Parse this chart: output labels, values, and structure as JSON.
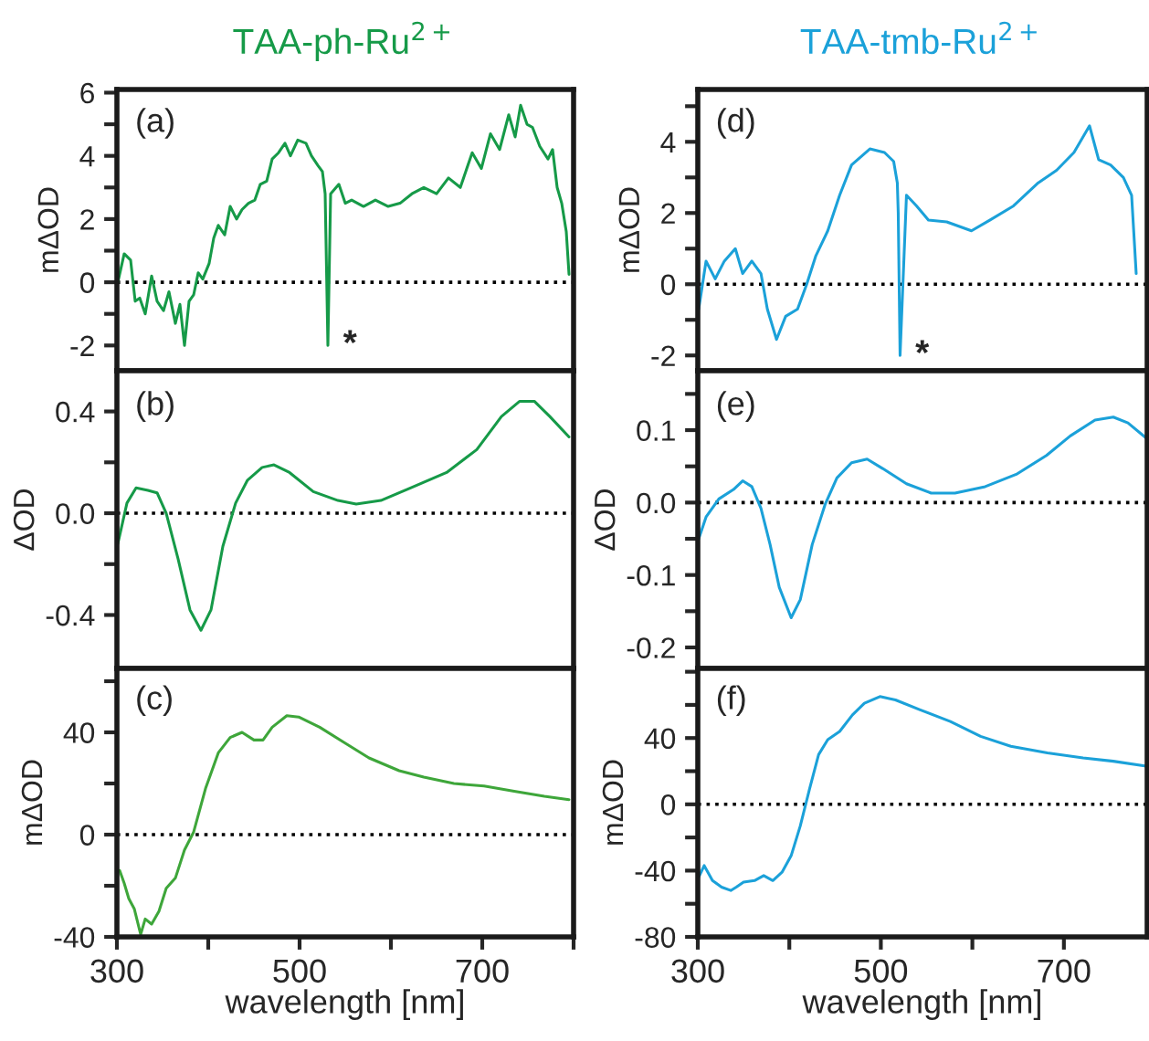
{
  "chart_data": [
    {
      "type": "line",
      "title": "TAA-ph-Ru$^{2+}$",
      "ylabel": "mΔOD",
      "tick_labels": "y",
      "color": "#169a48",
      "x": [
        301,
        308,
        315,
        320,
        325,
        331,
        338,
        344,
        351,
        357,
        364,
        369,
        374,
        379,
        384,
        389,
        394,
        401,
        406,
        411,
        418,
        424,
        431,
        437,
        444,
        451,
        457,
        464,
        470,
        477,
        484,
        490,
        498,
        507,
        513,
        520,
        525,
        528,
        531,
        534,
        543,
        550,
        557,
        570,
        583,
        597,
        610,
        623,
        636,
        650,
        663,
        676,
        689,
        699,
        709,
        719,
        729,
        736,
        742,
        749,
        755,
        763,
        772,
        777,
        782,
        787,
        792,
        795
      ],
      "values": [
        0.0,
        0.9,
        0.7,
        -0.6,
        -0.5,
        -1.0,
        0.2,
        -0.6,
        -0.9,
        -0.3,
        -1.3,
        -0.7,
        -2.0,
        -0.6,
        -0.4,
        0.3,
        0.1,
        0.6,
        1.4,
        1.8,
        1.5,
        2.4,
        2.0,
        2.3,
        2.5,
        2.6,
        3.1,
        3.2,
        3.9,
        4.1,
        4.4,
        4.0,
        4.5,
        4.4,
        4.0,
        3.7,
        3.5,
        2.8,
        -2.0,
        2.8,
        3.1,
        2.5,
        2.6,
        2.4,
        2.6,
        2.4,
        2.5,
        2.8,
        3.0,
        2.8,
        3.3,
        3.0,
        4.1,
        3.6,
        4.7,
        4.2,
        5.3,
        4.6,
        5.6,
        5.0,
        4.9,
        4.3,
        3.9,
        4.2,
        3.0,
        2.5,
        1.6,
        0.25
      ],
      "xlim": [
        300,
        800
      ],
      "ylim": [
        -2.8,
        6.1
      ],
      "yticks": [
        -2,
        {
          "value": -1,
          "label": null
        },
        0,
        {
          "value": 1,
          "label": null
        },
        2,
        {
          "value": 3,
          "label": null
        },
        4,
        {
          "value": 5,
          "label": null
        },
        6
      ],
      "ref_lines": [
        {
          "axis": "y",
          "value": 0,
          "color": "#000000",
          "line_style": "dotted"
        }
      ],
      "annotations": [
        "(a)",
        {
          "text": "*",
          "x": 531,
          "y": -2.0
        }
      ]
    },
    {
      "type": "line",
      "ylabel": "ΔOD",
      "tick_labels": "y",
      "color": "#169a48",
      "x": [
        301,
        311,
        321,
        334,
        344,
        354,
        367,
        380,
        392,
        403,
        416,
        430,
        443,
        459,
        472,
        489,
        515,
        542,
        562,
        589,
        622,
        661,
        694,
        721,
        741,
        757,
        774,
        795
      ],
      "values": [
        -0.12,
        0.04,
        0.1,
        0.09,
        0.08,
        0.0,
        -0.18,
        -0.38,
        -0.46,
        -0.38,
        -0.13,
        0.04,
        0.13,
        0.18,
        0.19,
        0.16,
        0.085,
        0.05,
        0.036,
        0.05,
        0.1,
        0.16,
        0.25,
        0.38,
        0.44,
        0.44,
        0.38,
        0.3
      ],
      "xlim": [
        300,
        800
      ],
      "ylim": [
        -0.61,
        0.56
      ],
      "yticks": [
        -0.4,
        {
          "value": -0.2,
          "label": null
        },
        {
          "value": 0,
          "label": "0.0"
        },
        {
          "value": 0.2,
          "label": null
        },
        0.4
      ],
      "ref_lines": [
        {
          "axis": "y",
          "value": 0,
          "color": "#000000",
          "line_style": "dotted"
        }
      ],
      "annotations": [
        "(b)"
      ]
    },
    {
      "type": "line",
      "xlabel": "wavelength [nm]",
      "ylabel": "mΔOD",
      "color": "#3ea63a",
      "x": [
        303,
        308,
        313,
        319,
        326,
        331,
        338,
        346,
        354,
        364,
        374,
        384,
        397,
        411,
        424,
        437,
        450,
        460,
        470,
        486,
        499,
        522,
        549,
        576,
        609,
        636,
        669,
        702,
        735,
        768,
        795
      ],
      "values": [
        -14,
        -19,
        -25,
        -29,
        -39,
        -33,
        -35,
        -30,
        -21,
        -17,
        -6,
        1,
        18,
        32,
        38,
        40,
        37,
        37,
        42,
        46.5,
        46,
        42,
        36,
        30,
        25,
        22.5,
        20,
        19,
        17,
        15,
        13.7
      ],
      "xlim": [
        300,
        800
      ],
      "ylim": [
        -40,
        65
      ],
      "xticks": [
        300,
        {
          "value": 400,
          "label": null
        },
        500,
        {
          "value": 600,
          "label": null
        },
        700,
        {
          "value": 800,
          "label": null
        }
      ],
      "yticks": [
        -40,
        {
          "value": -20,
          "label": null
        },
        0,
        {
          "value": 20,
          "label": null
        },
        40,
        {
          "value": 60,
          "label": null
        }
      ],
      "ref_lines": [
        {
          "axis": "y",
          "value": 0,
          "color": "#000000",
          "line_style": "dotted"
        }
      ],
      "annotations": [
        "(c)"
      ]
    },
    {
      "type": "line",
      "title": "TAA-tmb-Ru$^{2+}$",
      "ylabel": "mΔOD",
      "tick_labels": "y",
      "color": "#1ba1d9",
      "x": [
        301,
        309,
        319,
        329,
        341,
        349,
        359,
        369,
        376,
        386,
        396,
        409,
        419,
        429,
        442,
        455,
        468,
        488,
        504,
        514,
        518,
        519,
        521,
        528,
        539,
        552,
        572,
        599,
        619,
        645,
        672,
        692,
        711,
        728,
        738,
        751,
        765,
        774,
        779
      ],
      "values": [
        -0.7,
        0.65,
        0.15,
        0.65,
        1.0,
        0.3,
        0.65,
        0.3,
        -0.7,
        -1.55,
        -0.9,
        -0.7,
        0.0,
        0.8,
        1.5,
        2.5,
        3.35,
        3.8,
        3.7,
        3.45,
        2.85,
        2.0,
        -2.0,
        2.5,
        2.2,
        1.8,
        1.75,
        1.5,
        1.8,
        2.2,
        2.85,
        3.2,
        3.7,
        4.45,
        3.5,
        3.35,
        3.0,
        2.5,
        0.3
      ],
      "xlim": [
        300,
        791
      ],
      "ylim": [
        -2.43,
        5.47
      ],
      "yticks": [
        -2,
        {
          "value": -1,
          "label": null
        },
        0,
        {
          "value": 1,
          "label": null
        },
        2,
        {
          "value": 3,
          "label": null
        },
        4,
        {
          "value": 5,
          "label": null
        }
      ],
      "ref_lines": [
        {
          "axis": "y",
          "value": 0,
          "color": "#000000",
          "line_style": "dotted"
        }
      ],
      "annotations": [
        "(d)",
        {
          "text": "*",
          "x": 521,
          "y": -2.0
        }
      ]
    },
    {
      "type": "line",
      "ylabel": "ΔOD",
      "tick_labels": "y",
      "color": "#1ba1d9",
      "x": [
        301,
        309,
        323,
        339,
        349,
        359,
        369,
        379,
        389,
        402,
        412,
        425,
        439,
        452,
        468,
        485,
        502,
        528,
        555,
        581,
        614,
        648,
        681,
        707,
        734,
        754,
        770,
        790
      ],
      "values": [
        -0.05,
        -0.02,
        0.005,
        0.018,
        0.03,
        0.022,
        -0.008,
        -0.058,
        -0.117,
        -0.159,
        -0.134,
        -0.058,
        -0.003,
        0.034,
        0.055,
        0.06,
        0.047,
        0.026,
        0.013,
        0.013,
        0.022,
        0.039,
        0.065,
        0.092,
        0.114,
        0.118,
        0.11,
        0.089
      ],
      "xlim": [
        300,
        791
      ],
      "ylim": [
        -0.229,
        0.182
      ],
      "yticks": [
        -0.2,
        {
          "value": -0.15,
          "label": null
        },
        -0.1,
        {
          "value": -0.05,
          "label": null
        },
        {
          "value": 0,
          "label": "0.0"
        },
        {
          "value": 0.05,
          "label": null
        },
        0.1,
        {
          "value": 0.15,
          "label": null
        }
      ],
      "ref_lines": [
        {
          "axis": "y",
          "value": 0,
          "color": "#000000",
          "line_style": "dotted"
        }
      ],
      "annotations": [
        "(e)"
      ]
    },
    {
      "type": "line",
      "xlabel": "wavelength [nm]",
      "ylabel": "mΔOD",
      "color": "#1ba1d9",
      "x": [
        301,
        307,
        316,
        326,
        336,
        342,
        350,
        362,
        372,
        382,
        392,
        402,
        412,
        422,
        432,
        442,
        455,
        469,
        482,
        499,
        516,
        543,
        576,
        609,
        642,
        682,
        721,
        754,
        790
      ],
      "values": [
        -44,
        -37,
        -46,
        -50,
        -52,
        -50,
        -47,
        -46,
        -43,
        -46,
        -41,
        -31,
        -13,
        9,
        30,
        39,
        44,
        54,
        61,
        65,
        63,
        57,
        50,
        41,
        35,
        31,
        28,
        26,
        23
      ],
      "xlim": [
        300,
        791
      ],
      "ylim": [
        -80,
        82
      ],
      "xticks": [
        300,
        {
          "value": 400,
          "label": null
        },
        500,
        {
          "value": 600,
          "label": null
        },
        700
      ],
      "yticks": [
        -80,
        {
          "value": -60,
          "label": null
        },
        -40,
        {
          "value": -20,
          "label": null
        },
        0,
        {
          "value": 20,
          "label": null
        },
        40,
        {
          "value": 60,
          "label": null
        },
        {
          "value": 80,
          "label": null
        }
      ],
      "ref_lines": [
        {
          "axis": "y",
          "value": 0,
          "color": "#000000",
          "line_style": "dotted"
        }
      ],
      "annotations": [
        "(f)"
      ]
    }
  ]
}
